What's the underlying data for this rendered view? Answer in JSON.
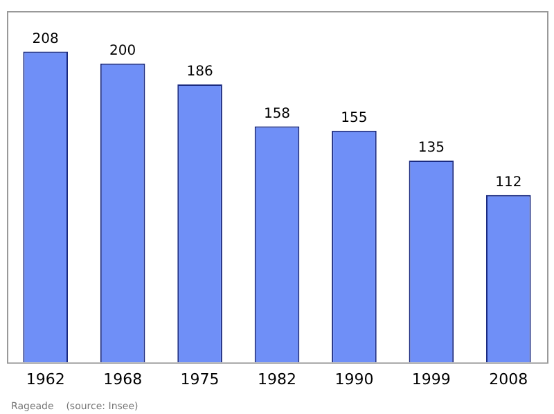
{
  "chart_data": {
    "type": "bar",
    "categories": [
      "1962",
      "1968",
      "1975",
      "1982",
      "1990",
      "1999",
      "2008"
    ],
    "values": [
      208,
      200,
      186,
      158,
      155,
      135,
      112
    ],
    "color": "#6f8ff7",
    "data_labels": true,
    "grid": false,
    "legend": false,
    "annotations": [
      "Rageade    (source: Insee)"
    ]
  }
}
